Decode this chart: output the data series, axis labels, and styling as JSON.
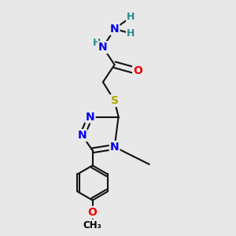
{
  "bg_color": "#e8e8e8",
  "atom_colors": {
    "C": "#000000",
    "N": "#0000ee",
    "O": "#ee0000",
    "S": "#aaaa00",
    "H": "#2e8b8b"
  },
  "bond_color": "#111111",
  "bond_width": 1.5,
  "figsize": [
    3.0,
    3.0
  ],
  "dpi": 100,
  "xlim": [
    0,
    10
  ],
  "ylim": [
    0,
    10
  ]
}
